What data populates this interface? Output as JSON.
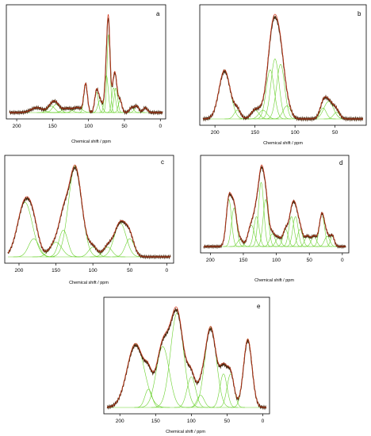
{
  "colors": {
    "experimental": "#4a2a10",
    "fit": "#d2361c",
    "components": "#6ad12e"
  },
  "chart_data": [
    {
      "type": "line",
      "panel_label": "a",
      "xlabel": "Chemical shift / ppm",
      "xlim": [
        210,
        -3
      ],
      "x_ticks": [
        200,
        150,
        100,
        50,
        0
      ],
      "grid": false,
      "peaks": [
        {
          "x": 172,
          "h": 0.06,
          "w": 8
        },
        {
          "x": 152,
          "h": 0.08,
          "w": 5
        },
        {
          "x": 145,
          "h": 0.1,
          "w": 5
        },
        {
          "x": 130,
          "h": 0.05,
          "w": 6
        },
        {
          "x": 115,
          "h": 0.06,
          "w": 6
        },
        {
          "x": 104,
          "h": 0.35,
          "w": 2.5
        },
        {
          "x": 89,
          "h": 0.25,
          "w": 2.5
        },
        {
          "x": 84,
          "h": 0.15,
          "w": 3
        },
        {
          "x": 75,
          "h": 0.45,
          "w": 2.5
        },
        {
          "x": 72,
          "h": 0.95,
          "w": 2.2
        },
        {
          "x": 65,
          "h": 0.3,
          "w": 2.5
        },
        {
          "x": 62,
          "h": 0.3,
          "w": 2.5
        },
        {
          "x": 56,
          "h": 0.15,
          "w": 2.5
        },
        {
          "x": 40,
          "h": 0.06,
          "w": 3
        },
        {
          "x": 33,
          "h": 0.08,
          "w": 3
        },
        {
          "x": 21,
          "h": 0.06,
          "w": 3
        }
      ]
    },
    {
      "type": "line",
      "panel_label": "b",
      "xlabel": "Chemical shift / ppm",
      "xlim": [
        215,
        15
      ],
      "x_ticks": [
        200,
        150,
        100,
        50
      ],
      "grid": false,
      "peaks": [
        {
          "x": 188,
          "h": 0.45,
          "w": 7
        },
        {
          "x": 172,
          "h": 0.08,
          "w": 4
        },
        {
          "x": 150,
          "h": 0.08,
          "w": 5
        },
        {
          "x": 140,
          "h": 0.08,
          "w": 5
        },
        {
          "x": 131,
          "h": 0.45,
          "w": 5
        },
        {
          "x": 125,
          "h": 0.55,
          "w": 5
        },
        {
          "x": 118,
          "h": 0.5,
          "w": 5
        },
        {
          "x": 110,
          "h": 0.12,
          "w": 5
        },
        {
          "x": 65,
          "h": 0.1,
          "w": 4
        },
        {
          "x": 58,
          "h": 0.16,
          "w": 6
        },
        {
          "x": 48,
          "h": 0.06,
          "w": 4
        }
      ]
    },
    {
      "type": "line",
      "panel_label": "c",
      "xlabel": "Chemical shift / ppm",
      "xlim": [
        215,
        -5
      ],
      "x_ticks": [
        200,
        150,
        100,
        50,
        0
      ],
      "grid": false,
      "peaks": [
        {
          "x": 192,
          "h": 0.45,
          "w": 10
        },
        {
          "x": 180,
          "h": 0.15,
          "w": 7
        },
        {
          "x": 150,
          "h": 0.12,
          "w": 8
        },
        {
          "x": 140,
          "h": 0.22,
          "w": 6
        },
        {
          "x": 124,
          "h": 0.75,
          "w": 9
        },
        {
          "x": 100,
          "h": 0.08,
          "w": 6
        },
        {
          "x": 80,
          "h": 0.08,
          "w": 6
        },
        {
          "x": 63,
          "h": 0.28,
          "w": 8
        },
        {
          "x": 50,
          "h": 0.15,
          "w": 6
        }
      ]
    },
    {
      "type": "line",
      "panel_label": "d",
      "xlabel": "Chemical shift / ppm",
      "xlim": [
        210,
        -5
      ],
      "x_ticks": [
        200,
        150,
        100,
        50,
        0
      ],
      "grid": false,
      "peaks": [
        {
          "x": 172,
          "h": 0.55,
          "w": 4
        },
        {
          "x": 164,
          "h": 0.45,
          "w": 4
        },
        {
          "x": 155,
          "h": 0.08,
          "w": 4
        },
        {
          "x": 138,
          "h": 0.25,
          "w": 5
        },
        {
          "x": 130,
          "h": 0.35,
          "w": 4
        },
        {
          "x": 123,
          "h": 0.75,
          "w": 4
        },
        {
          "x": 116,
          "h": 0.55,
          "w": 4
        },
        {
          "x": 106,
          "h": 0.15,
          "w": 4
        },
        {
          "x": 97,
          "h": 0.1,
          "w": 4
        },
        {
          "x": 86,
          "h": 0.2,
          "w": 4
        },
        {
          "x": 77,
          "h": 0.35,
          "w": 4
        },
        {
          "x": 71,
          "h": 0.35,
          "w": 4
        },
        {
          "x": 64,
          "h": 0.2,
          "w": 4
        },
        {
          "x": 53,
          "h": 0.12,
          "w": 4
        },
        {
          "x": 43,
          "h": 0.12,
          "w": 4
        },
        {
          "x": 31,
          "h": 0.38,
          "w": 4
        },
        {
          "x": 23,
          "h": 0.12,
          "w": 4
        },
        {
          "x": 15,
          "h": 0.12,
          "w": 3
        }
      ]
    },
    {
      "type": "line",
      "panel_label": "e",
      "xlabel": "Chemical shift / ppm",
      "xlim": [
        218,
        -5
      ],
      "x_ticks": [
        200,
        150,
        100,
        50,
        0
      ],
      "grid": false,
      "peaks": [
        {
          "x": 178,
          "h": 0.42,
          "w": 12
        },
        {
          "x": 160,
          "h": 0.12,
          "w": 5
        },
        {
          "x": 140,
          "h": 0.4,
          "w": 9
        },
        {
          "x": 120,
          "h": 0.62,
          "w": 9
        },
        {
          "x": 100,
          "h": 0.2,
          "w": 6
        },
        {
          "x": 87,
          "h": 0.08,
          "w": 5
        },
        {
          "x": 73,
          "h": 0.53,
          "w": 8
        },
        {
          "x": 55,
          "h": 0.22,
          "w": 5
        },
        {
          "x": 45,
          "h": 0.22,
          "w": 5
        },
        {
          "x": 21,
          "h": 0.45,
          "w": 6
        }
      ]
    }
  ]
}
